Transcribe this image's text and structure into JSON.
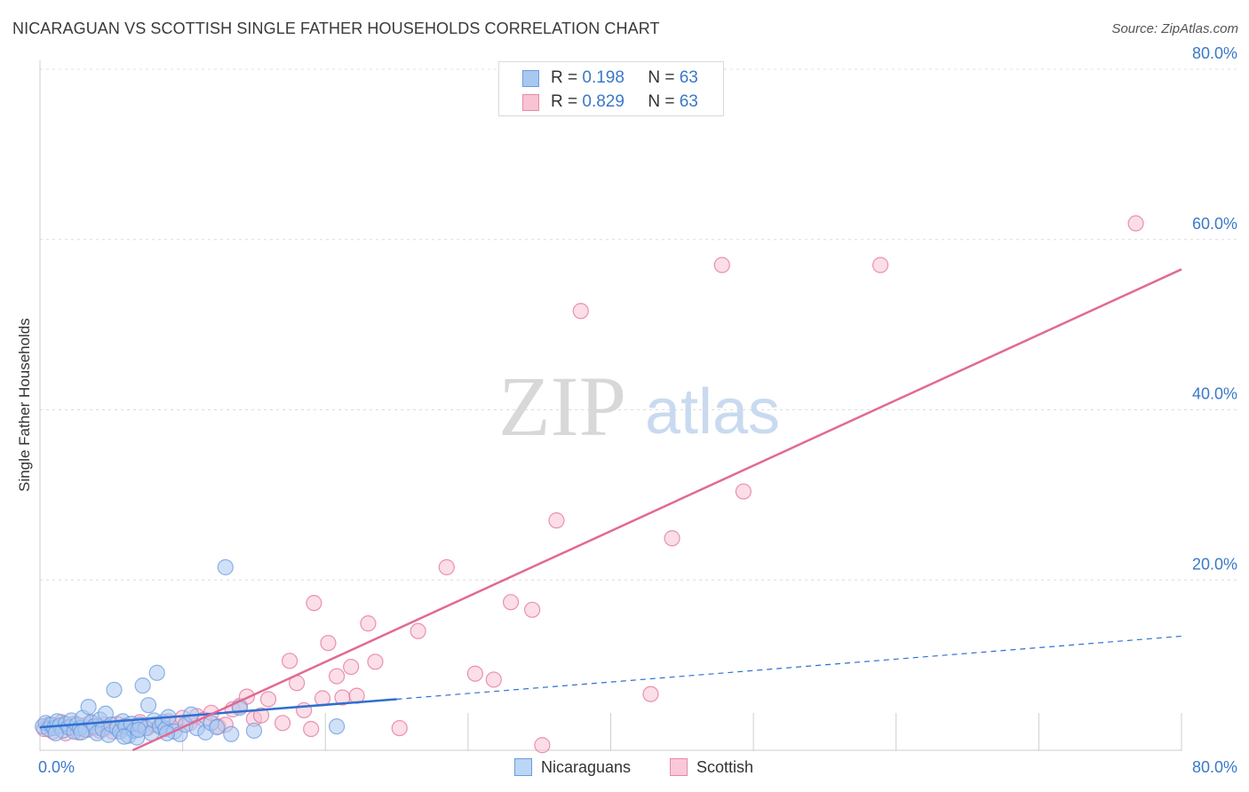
{
  "title": "NICARAGUAN VS SCOTTISH SINGLE FATHER HOUSEHOLDS CORRELATION CHART",
  "source": "Source: ZipAtlas.com",
  "watermark": {
    "zip": "ZIP",
    "atlas": "atlas"
  },
  "legend": {
    "rows": [
      {
        "r_label": "R =",
        "r_value": "0.198",
        "n_label": "N =",
        "n_value": "63",
        "color": "#a9c8f0",
        "stroke": "#6a9be0"
      },
      {
        "r_label": "R =",
        "r_value": "0.829",
        "n_label": "N =",
        "n_value": "63",
        "color": "#f8c3d3",
        "stroke": "#e58aa8"
      }
    ],
    "bottom": [
      {
        "label": "Nicaraguans",
        "color": "#bcd6f5",
        "stroke": "#6a9be0"
      },
      {
        "label": "Scottish",
        "color": "#f9c9d8",
        "stroke": "#e58aa8"
      }
    ]
  },
  "chart_data": {
    "type": "scatter",
    "title": "NICARAGUAN VS SCOTTISH SINGLE FATHER HOUSEHOLDS CORRELATION CHART",
    "xlabel": "",
    "ylabel": "Single Father Households",
    "xlim": [
      0,
      80
    ],
    "ylim": [
      0,
      80
    ],
    "x_tick_labels": [
      "0.0%",
      "80.0%"
    ],
    "y_ticks": [
      20,
      40,
      60,
      80
    ],
    "y_tick_labels": [
      "20.0%",
      "40.0%",
      "60.0%",
      "80.0%"
    ],
    "series": [
      {
        "name": "Nicaraguans",
        "color": "#6a9be0",
        "fill": "#a9c8f0",
        "r": 0.198,
        "n": 63,
        "trend": {
          "x0": 0.0,
          "y0": 2.7,
          "x1": 25.0,
          "y1": 6.0,
          "dash_x1": 80.0,
          "dash_y1": 13.4
        },
        "points": [
          [
            0.2,
            2.8
          ],
          [
            0.4,
            3.2
          ],
          [
            0.6,
            2.5
          ],
          [
            0.8,
            3.0
          ],
          [
            1.0,
            2.6
          ],
          [
            1.2,
            3.4
          ],
          [
            1.4,
            2.9
          ],
          [
            1.6,
            2.3
          ],
          [
            1.8,
            3.1
          ],
          [
            2.0,
            2.7
          ],
          [
            2.2,
            3.5
          ],
          [
            2.4,
            2.2
          ],
          [
            2.6,
            3.0
          ],
          [
            2.8,
            2.6
          ],
          [
            3.0,
            3.8
          ],
          [
            3.2,
            2.4
          ],
          [
            3.4,
            5.1
          ],
          [
            3.6,
            3.3
          ],
          [
            3.8,
            2.8
          ],
          [
            4.0,
            2.0
          ],
          [
            4.2,
            3.6
          ],
          [
            4.4,
            2.5
          ],
          [
            4.6,
            4.3
          ],
          [
            4.8,
            1.8
          ],
          [
            5.0,
            3.0
          ],
          [
            5.2,
            7.1
          ],
          [
            5.4,
            2.6
          ],
          [
            5.6,
            2.2
          ],
          [
            5.8,
            3.4
          ],
          [
            6.0,
            2.8
          ],
          [
            6.2,
            1.7
          ],
          [
            6.4,
            3.1
          ],
          [
            6.6,
            2.3
          ],
          [
            6.8,
            1.5
          ],
          [
            7.0,
            3.0
          ],
          [
            7.2,
            7.6
          ],
          [
            7.4,
            2.6
          ],
          [
            7.6,
            5.3
          ],
          [
            7.8,
            2.0
          ],
          [
            8.0,
            3.5
          ],
          [
            8.2,
            9.1
          ],
          [
            8.4,
            2.8
          ],
          [
            8.6,
            3.3
          ],
          [
            8.8,
            2.5
          ],
          [
            9.0,
            3.9
          ],
          [
            9.4,
            2.2
          ],
          [
            9.8,
            1.9
          ],
          [
            10.2,
            3.0
          ],
          [
            10.6,
            4.2
          ],
          [
            11.0,
            2.6
          ],
          [
            11.6,
            2.1
          ],
          [
            12.0,
            3.2
          ],
          [
            12.4,
            2.7
          ],
          [
            13.0,
            21.5
          ],
          [
            13.4,
            1.9
          ],
          [
            14.0,
            5.0
          ],
          [
            15.0,
            2.3
          ],
          [
            1.1,
            2.0
          ],
          [
            2.9,
            2.1
          ],
          [
            5.9,
            1.6
          ],
          [
            6.9,
            2.4
          ],
          [
            8.9,
            2.0
          ],
          [
            20.8,
            2.8
          ]
        ]
      },
      {
        "name": "Scottish",
        "color": "#e47099",
        "fill": "#f8c3d3",
        "r": 0.829,
        "n": 63,
        "trend": {
          "x0": 6.5,
          "y0": 0.0,
          "x1": 80.0,
          "y1": 56.5
        },
        "points": [
          [
            0.3,
            2.5
          ],
          [
            0.6,
            3.0
          ],
          [
            0.9,
            2.2
          ],
          [
            1.2,
            2.8
          ],
          [
            1.5,
            3.3
          ],
          [
            1.8,
            2.0
          ],
          [
            2.1,
            2.6
          ],
          [
            2.4,
            3.1
          ],
          [
            2.7,
            2.1
          ],
          [
            3.0,
            2.9
          ],
          [
            3.3,
            2.4
          ],
          [
            3.6,
            3.2
          ],
          [
            3.9,
            2.6
          ],
          [
            4.2,
            2.3
          ],
          [
            4.5,
            3.0
          ],
          [
            4.8,
            2.7
          ],
          [
            5.1,
            2.2
          ],
          [
            5.4,
            3.1
          ],
          [
            5.7,
            2.5
          ],
          [
            6.0,
            2.9
          ],
          [
            6.5,
            2.4
          ],
          [
            7.0,
            3.3
          ],
          [
            7.5,
            2.6
          ],
          [
            8.0,
            3.0
          ],
          [
            8.5,
            2.8
          ],
          [
            9.0,
            3.4
          ],
          [
            9.5,
            3.1
          ],
          [
            10.0,
            3.8
          ],
          [
            10.5,
            3.2
          ],
          [
            11.0,
            4.0
          ],
          [
            11.5,
            3.6
          ],
          [
            12.0,
            4.4
          ],
          [
            12.5,
            2.8
          ],
          [
            13.0,
            3.0
          ],
          [
            13.5,
            4.8
          ],
          [
            14.0,
            5.2
          ],
          [
            14.5,
            6.3
          ],
          [
            15.0,
            3.7
          ],
          [
            15.5,
            4.1
          ],
          [
            16.0,
            6.0
          ],
          [
            17.0,
            3.2
          ],
          [
            17.5,
            10.5
          ],
          [
            18.0,
            7.9
          ],
          [
            18.5,
            4.7
          ],
          [
            19.0,
            2.5
          ],
          [
            19.2,
            17.3
          ],
          [
            19.8,
            6.1
          ],
          [
            20.2,
            12.6
          ],
          [
            20.8,
            8.7
          ],
          [
            21.2,
            6.2
          ],
          [
            21.8,
            9.8
          ],
          [
            22.2,
            6.4
          ],
          [
            23.0,
            14.9
          ],
          [
            23.5,
            10.4
          ],
          [
            25.2,
            2.6
          ],
          [
            26.5,
            14.0
          ],
          [
            28.5,
            21.5
          ],
          [
            30.5,
            9.0
          ],
          [
            31.8,
            8.3
          ],
          [
            33.0,
            17.4
          ],
          [
            34.5,
            16.5
          ],
          [
            35.2,
            0.6
          ],
          [
            36.2,
            27.0
          ]
        ],
        "outliers": [
          [
            37.9,
            51.6
          ],
          [
            42.8,
            6.6
          ],
          [
            44.3,
            24.9
          ],
          [
            47.8,
            57.0
          ],
          [
            49.3,
            30.4
          ],
          [
            58.9,
            57.0
          ],
          [
            76.8,
            61.9
          ]
        ]
      }
    ]
  }
}
